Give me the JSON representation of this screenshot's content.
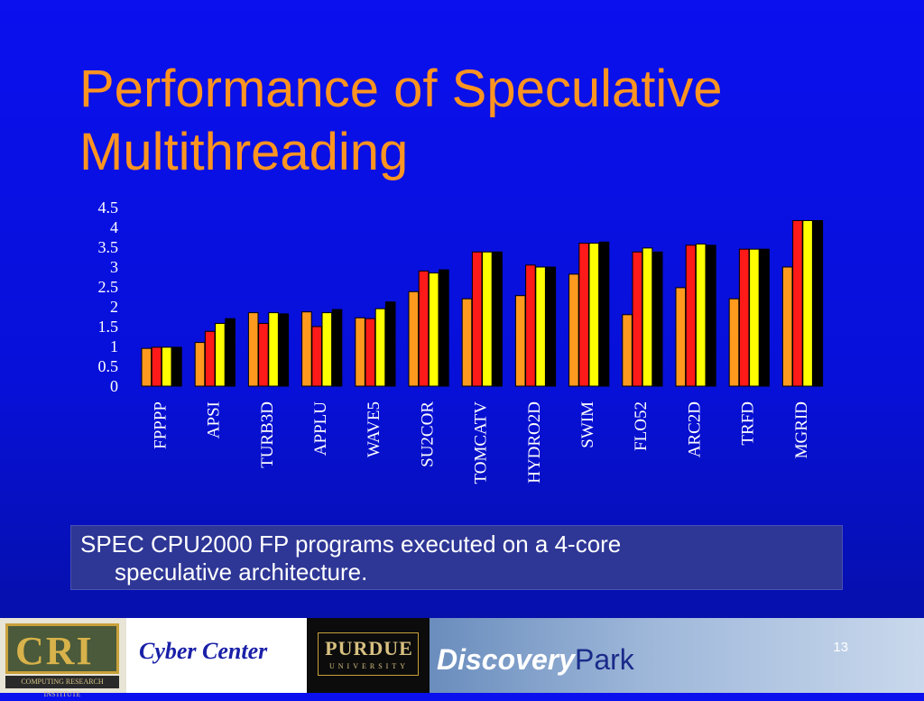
{
  "slide": {
    "title_line1": "Performance of Speculative",
    "title_line2": "Multithreading",
    "caption_line1": "SPEC CPU2000 FP programs executed on a 4-core",
    "caption_line2": "speculative architecture.",
    "page_number": "13"
  },
  "footer": {
    "cri_logo_text": "CRI",
    "cri_logo_subtext": "COMPUTING RESEARCH INSTITUTE",
    "cyber_center": "Cyber Center",
    "purdue": "PURDUE",
    "purdue_sub": "UNIVERSITY",
    "discovery": "Discovery",
    "park": "Park"
  },
  "colors": {
    "title": "#ff9420",
    "series": [
      "#ff9a1e",
      "#ff1a1a",
      "#ffff00",
      "#000000"
    ]
  },
  "chart_data": {
    "type": "bar",
    "ylim": [
      0,
      4.5
    ],
    "yticks": [
      "4.5",
      "4",
      "3.5",
      "3",
      "2.5",
      "2",
      "1.5",
      "1",
      "0.5",
      "0"
    ],
    "categories": [
      "FPPPP",
      "APSI",
      "TURB3D",
      "APPLU",
      "WAVE5",
      "SU2COR",
      "TOMCATV",
      "HYDRO2D",
      "SWIM",
      "FLO52",
      "ARC2D",
      "TRFD",
      "MGRID"
    ],
    "series": [
      {
        "values": [
          0.95,
          1.1,
          1.85,
          1.87,
          1.72,
          2.38,
          2.2,
          2.28,
          2.82,
          1.8,
          2.48,
          2.2,
          3.0
        ]
      },
      {
        "values": [
          0.98,
          1.38,
          1.58,
          1.5,
          1.7,
          2.9,
          3.38,
          3.05,
          3.6,
          3.38,
          3.55,
          3.45,
          4.17
        ]
      },
      {
        "values": [
          0.98,
          1.58,
          1.85,
          1.85,
          1.95,
          2.85,
          3.38,
          3.0,
          3.6,
          3.48,
          3.58,
          3.45,
          4.17
        ]
      },
      {
        "values": [
          0.98,
          1.7,
          1.82,
          1.93,
          2.12,
          2.93,
          3.38,
          3.0,
          3.63,
          3.38,
          3.55,
          3.45,
          4.17
        ]
      }
    ]
  }
}
